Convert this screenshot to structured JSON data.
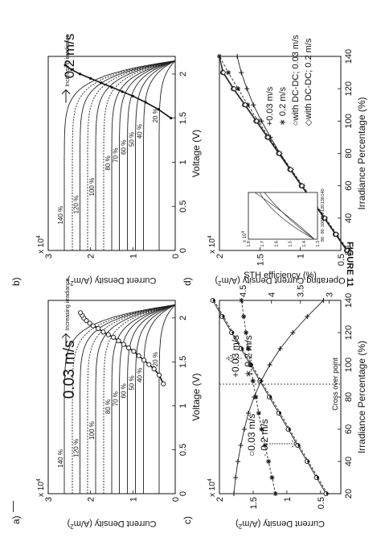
{
  "figure_caption": "FIGURE 11",
  "chart_data": [
    {
      "id": "a",
      "panel_label": "a)",
      "type": "line",
      "title": "0.03 m/s",
      "xlabel": "Voltage (V)",
      "ylabel": "Current Density (A/m²)",
      "ylabel_main": "Current Density (A/m",
      "ylabel_sup": "2",
      "ylabel_end": ")",
      "y_multiplier": "x 10",
      "y_multiplier_exp": "4",
      "xlim": [
        0,
        2.2
      ],
      "ylim": [
        0,
        3
      ],
      "xticks": [
        "0",
        "0.5",
        "1",
        "1.5",
        "2"
      ],
      "xtick_values": [
        0,
        0.5,
        1,
        1.5,
        2
      ],
      "yticks": [
        "0",
        "1",
        "2",
        "3"
      ],
      "ytick_values": [
        0,
        1,
        2,
        3
      ],
      "annotation": "Increasing irradiance",
      "series": [
        {
          "name": "140 %",
          "isc": 2.62
        },
        {
          "name": "120 %",
          "isc": 2.25
        },
        {
          "name": "100 %",
          "isc": 1.88
        },
        {
          "name": "80 %",
          "isc": 1.5
        },
        {
          "name": "70 %",
          "isc": 1.32
        },
        {
          "name": "60 %",
          "isc": 1.13
        },
        {
          "name": "50 %",
          "isc": 0.94
        },
        {
          "name": "40 %",
          "isc": 0.75
        },
        {
          "name": "20 %",
          "isc": 0.38
        }
      ],
      "voc": 2.15,
      "unlabeled_curve_isc": [
        2.43,
        2.07,
        1.69
      ],
      "operating_points": {
        "x": [
          1.25,
          1.35,
          1.42,
          1.47,
          1.52,
          1.57,
          1.62,
          1.66,
          1.7,
          1.74,
          1.78,
          1.81,
          1.84,
          1.88,
          1.91,
          1.94,
          1.97,
          2.0,
          2.03,
          2.06
        ],
        "y": [
          0.28,
          0.38,
          0.5,
          0.62,
          0.74,
          0.86,
          0.98,
          1.1,
          1.22,
          1.34,
          1.46,
          1.58,
          1.7,
          1.82,
          1.94,
          2.02,
          2.1,
          2.16,
          2.2,
          2.24
        ]
      }
    },
    {
      "id": "b",
      "panel_label": "b)",
      "type": "line",
      "title": "0.2 m/s",
      "xlabel": "Voltage (V)",
      "ylabel": "Current Density (A/m²)",
      "ylabel_main": "Current Density (A/m",
      "ylabel_sup": "2",
      "ylabel_end": ")",
      "y_multiplier": "x 10",
      "y_multiplier_exp": "4",
      "xlim": [
        0,
        2.2
      ],
      "ylim": [
        0,
        3
      ],
      "xticks": [
        "0",
        "0.5",
        "1",
        "1.5",
        "2"
      ],
      "xtick_values": [
        0,
        0.5,
        1,
        1.5,
        2
      ],
      "yticks": [
        "0",
        "1",
        "2",
        "3"
      ],
      "ytick_values": [
        0,
        1,
        2,
        3
      ],
      "annotation": "Increasing irradiance",
      "series": [
        {
          "name": "140 %",
          "isc": 2.62
        },
        {
          "name": "120 %",
          "isc": 2.25
        },
        {
          "name": "100 %",
          "isc": 1.88
        },
        {
          "name": "80 %",
          "isc": 1.5
        },
        {
          "name": "70 %",
          "isc": 1.32
        },
        {
          "name": "60 %",
          "isc": 1.13
        },
        {
          "name": "50 %",
          "isc": 0.94
        },
        {
          "name": "40 %",
          "isc": 0.75
        },
        {
          "name": "20 %",
          "isc": 0.38
        }
      ],
      "voc": 2.15,
      "unlabeled_curve_isc": [
        2.43,
        2.07,
        1.69
      ],
      "operating_points": {
        "x": [
          1.5,
          1.6,
          1.68,
          1.75,
          1.8,
          1.85,
          1.9,
          1.95,
          2.0,
          2.05,
          2.1
        ],
        "y": [
          0.1,
          0.4,
          0.7,
          1.0,
          1.25,
          1.5,
          1.75,
          2.0,
          2.25,
          2.45,
          2.6
        ]
      }
    },
    {
      "id": "c",
      "panel_label": "c)",
      "type": "line",
      "xlabel": "Irradiance Percentage (%)",
      "ylabel": "Current Density (A/m²)",
      "ylabel_main": "Current Density (A/m",
      "ylabel_sup": "2",
      "ylabel_end": ")",
      "y_multiplier": "x 10",
      "y_multiplier_exp": "4",
      "y2label": "STH efficiency (%)",
      "xlim": [
        20,
        140
      ],
      "ylim": [
        0.2,
        2.0
      ],
      "y2lim": [
        2.8,
        4.9
      ],
      "xticks": [
        "20",
        "40",
        "60",
        "80",
        "100",
        "120",
        "140"
      ],
      "xtick_values": [
        20,
        40,
        60,
        80,
        100,
        120,
        140
      ],
      "yticks": [
        "0.5",
        "1",
        "1.5",
        "2"
      ],
      "ytick_values": [
        0.5,
        1,
        1.5,
        2
      ],
      "y2ticks": [
        "3",
        "3.5",
        "4",
        "4.5"
      ],
      "y2tick_values": [
        3,
        3.5,
        4,
        4.5
      ],
      "crossover_x": 88,
      "crossover_label": "Cross over point",
      "legend_left": [
        "○0.03 m/s",
        "· 0.2 m/s"
      ],
      "legend_right": [
        "+0.03 m/s",
        "∗ 0.2 m/s"
      ],
      "series": [
        {
          "name": "0.03 m/s",
          "axis": "left",
          "marker": "o",
          "x": [
            20,
            30,
            40,
            50,
            60,
            70,
            80,
            90,
            100,
            110,
            120,
            130,
            140
          ],
          "y": [
            0.42,
            0.56,
            0.7,
            0.84,
            0.98,
            1.12,
            1.26,
            1.4,
            1.54,
            1.68,
            1.82,
            1.96,
            2.1
          ]
        },
        {
          "name": "0.2 m/s",
          "axis": "left",
          "marker": "dot",
          "x": [
            20,
            30,
            40,
            50,
            60,
            70,
            80,
            90,
            100,
            110,
            120,
            130,
            140
          ],
          "y": [
            0.4,
            0.54,
            0.68,
            0.82,
            0.96,
            1.1,
            1.24,
            1.38,
            1.52,
            1.66,
            1.8,
            1.94,
            2.08
          ]
        },
        {
          "name": "0.03 m/s",
          "axis": "right",
          "marker": "+",
          "x": [
            20,
            30,
            40,
            50,
            60,
            70,
            80,
            90,
            100,
            110,
            120,
            130,
            140
          ],
          "y": [
            4.65,
            4.62,
            4.58,
            4.53,
            4.47,
            4.4,
            4.3,
            4.18,
            4.03,
            3.85,
            3.63,
            3.38,
            3.1
          ]
        },
        {
          "name": "0.2 m/s",
          "axis": "right",
          "marker": "*",
          "x": [
            20,
            30,
            40,
            50,
            60,
            70,
            80,
            90,
            100,
            110,
            120,
            130,
            140
          ],
          "y": [
            3.93,
            3.99,
            4.05,
            4.11,
            4.17,
            4.22,
            4.27,
            4.32,
            4.36,
            4.4,
            4.44,
            4.48,
            4.52
          ]
        }
      ]
    },
    {
      "id": "d",
      "panel_label": "d)",
      "type": "line",
      "xlabel": "Irradiance Percentage (%)",
      "ylabel": "Operating Current Density (A/m²)",
      "ylabel_main": "Operating Current Density (A/m",
      "ylabel_sup": "2",
      "ylabel_end": ")",
      "y_multiplier": "x 10",
      "y_multiplier_exp": "4",
      "xlim": [
        20,
        140
      ],
      "ylim": [
        0.5,
        2.0
      ],
      "xticks": [
        "20",
        "40",
        "60",
        "80",
        "100",
        "120",
        "140"
      ],
      "xtick_values": [
        20,
        40,
        60,
        80,
        100,
        120,
        140
      ],
      "yticks": [
        "0.5",
        "1",
        "1.5",
        "2"
      ],
      "ytick_values": [
        0.5,
        1,
        1.5,
        2
      ],
      "legend": [
        "+0.03 m/s",
        "∗ 0.2 m/s",
        "○with DC-DC; 0.03 m/s",
        "◇with DC-DC; 0.2 m/s"
      ],
      "inset": {
        "y_multiplier": "x 10",
        "y_multiplier_exp": "4",
        "xticks": [
          "80",
          "90",
          "100",
          "110",
          "120",
          "130",
          "140"
        ],
        "yticks": [
          "1.3",
          "1.4",
          "1.5",
          "1.6",
          "1.7",
          "1.8"
        ]
      },
      "series": [
        {
          "name": "0.03 m/s",
          "marker": "+",
          "x": [
            20,
            30,
            40,
            50,
            60,
            70,
            80,
            90,
            100,
            110,
            120,
            130,
            140
          ],
          "y": [
            0.42,
            0.56,
            0.7,
            0.84,
            0.98,
            1.12,
            1.25,
            1.37,
            1.48,
            1.58,
            1.66,
            1.73,
            1.78
          ]
        },
        {
          "name": "0.2 m/s",
          "marker": "*",
          "x": [
            20,
            30,
            40,
            50,
            60,
            70,
            80,
            90,
            100,
            110,
            120,
            130,
            140
          ],
          "y": [
            0.41,
            0.55,
            0.69,
            0.83,
            0.97,
            1.11,
            1.25,
            1.39,
            1.52,
            1.65,
            1.77,
            1.89,
            2.0
          ]
        },
        {
          "name": "with DC-DC; 0.03 m/s",
          "marker": "o",
          "x": [
            20,
            30,
            40,
            50,
            60,
            70,
            80,
            90,
            100,
            110,
            120,
            130,
            140
          ],
          "y": [
            0.43,
            0.57,
            0.71,
            0.85,
            0.99,
            1.13,
            1.27,
            1.41,
            1.55,
            1.69,
            1.83,
            1.96,
            2.09
          ]
        },
        {
          "name": "with DC-DC; 0.2 m/s",
          "marker": "diamond",
          "x": [
            20,
            30,
            40,
            50,
            60,
            70,
            80,
            90,
            100,
            110,
            120,
            130,
            140
          ],
          "y": [
            0.42,
            0.56,
            0.7,
            0.84,
            0.98,
            1.12,
            1.26,
            1.4,
            1.54,
            1.68,
            1.82,
            1.95,
            2.08
          ]
        }
      ]
    }
  ]
}
